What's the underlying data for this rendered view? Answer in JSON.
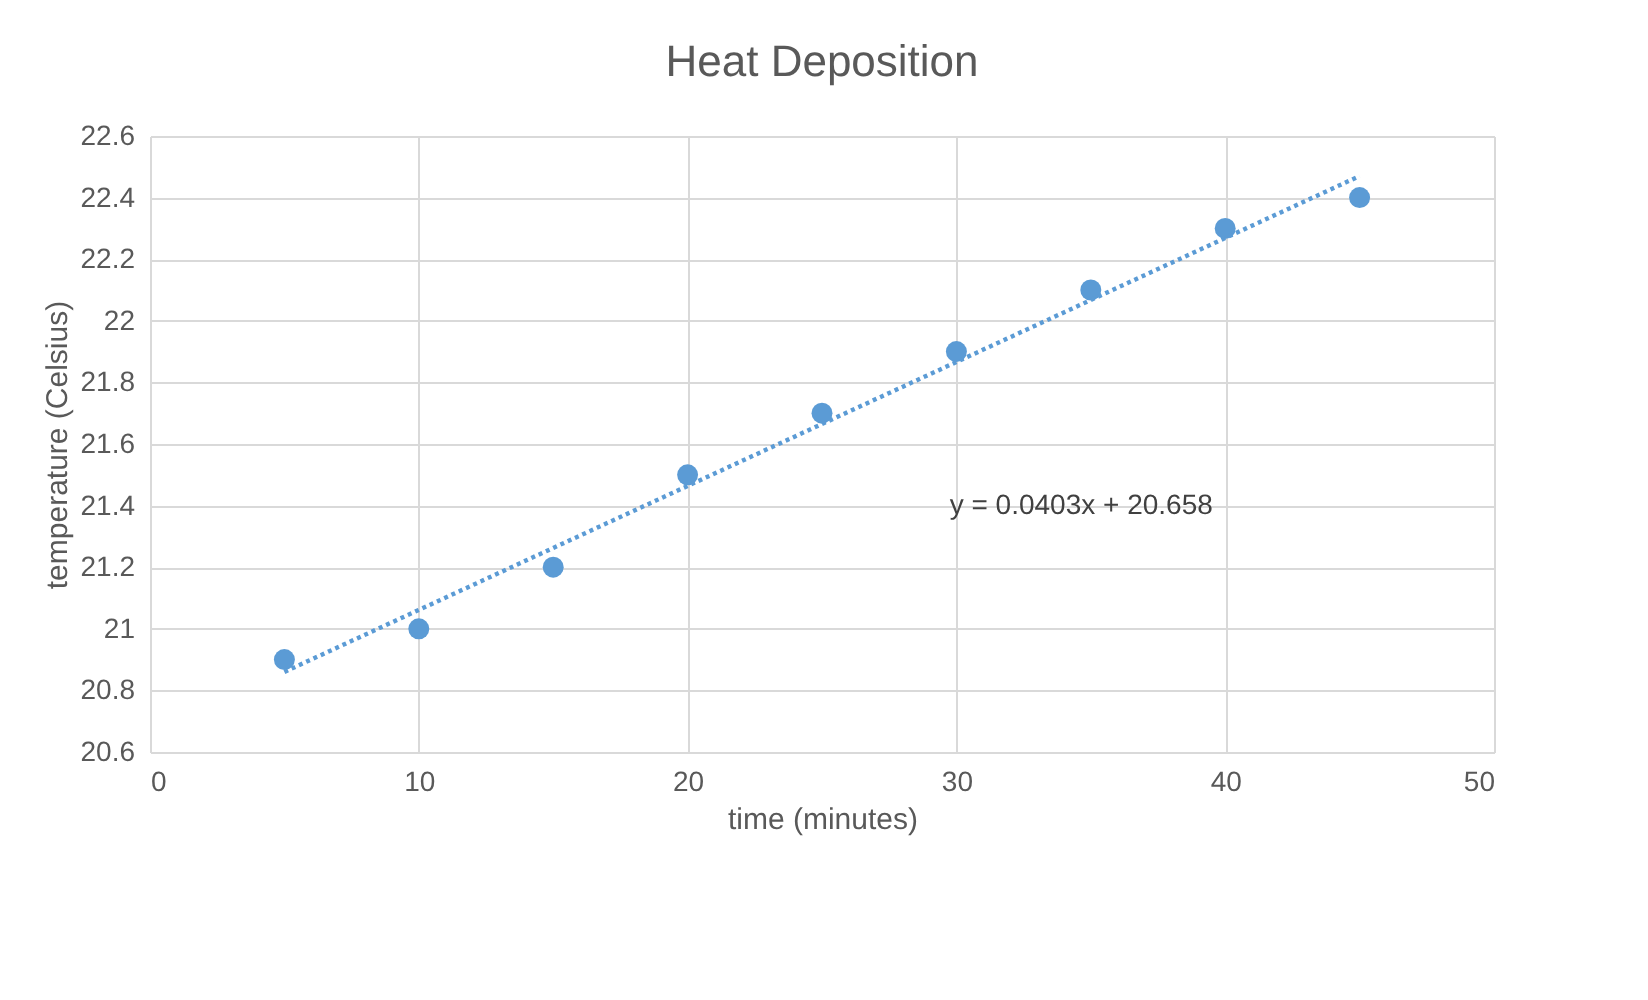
{
  "chart_data": {
    "type": "scatter",
    "title": "Heat Deposition",
    "xlabel": "time (minutes)",
    "ylabel": "temperature (Celsius)",
    "x": [
      5,
      10,
      15,
      20,
      25,
      30,
      35,
      40,
      45
    ],
    "series": [
      {
        "color": "#5b9bd5",
        "marker": "circle",
        "values": [
          20.9,
          21.0,
          21.2,
          21.5,
          21.7,
          21.9,
          22.1,
          22.3,
          22.4
        ]
      },
      {
        "type": "line",
        "color": "#5b9bd5",
        "line_style": "dotted",
        "marker": "none",
        "x": [
          5,
          45
        ],
        "values": [
          20.86,
          22.47
        ]
      }
    ],
    "annotations": [
      "y = 0.0403x + 20.658"
    ],
    "xlim": [
      0,
      50
    ],
    "xticks": [
      0,
      10,
      20,
      30,
      40,
      50
    ],
    "ylim": [
      20.6,
      22.6
    ],
    "yticks": [
      20.6,
      20.8,
      21,
      21.2,
      21.4,
      21.6,
      21.8,
      22,
      22.2,
      22.4,
      22.6
    ],
    "grid": true,
    "legend": false
  }
}
